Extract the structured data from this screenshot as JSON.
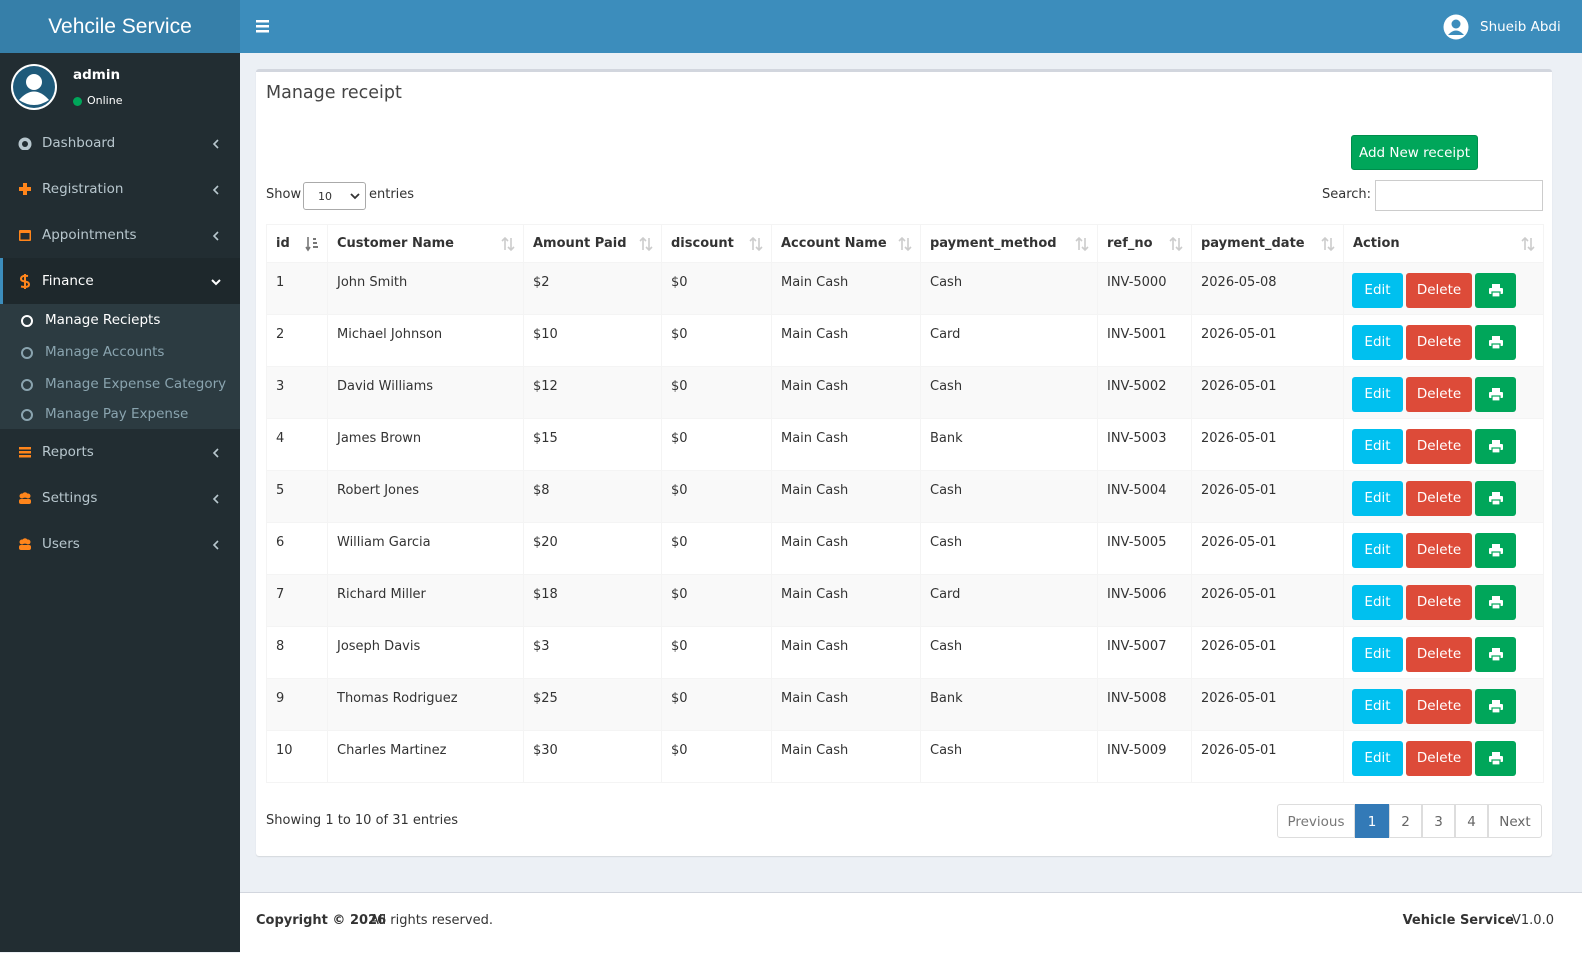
{
  "brand": "Vehcile Service",
  "user_name": "Shueib Abdi",
  "sidebar": {
    "user": "admin",
    "status": "Online",
    "menu": [
      {
        "label": "Dashboard"
      },
      {
        "label": "Registration"
      },
      {
        "label": "Appointments"
      },
      {
        "label": "Finance",
        "children": [
          "Manage Reciepts",
          "Manage Accounts",
          "Manage Expense Category",
          "Manage Pay Expense"
        ]
      },
      {
        "label": "Reports"
      },
      {
        "label": "Settings"
      },
      {
        "label": "Users"
      }
    ]
  },
  "box": {
    "title": "Manage receipt",
    "add_button": "Add New receipt",
    "show": "Show",
    "page_size": "10",
    "entries": "entries",
    "search": "Search:"
  },
  "table": {
    "columns": [
      "id",
      "Customer Name",
      "Amount Paid",
      "discount",
      "Account Name",
      "payment_method",
      "ref_no",
      "payment_date",
      "Action"
    ],
    "rows": [
      [
        "1",
        "John Smith",
        "$2",
        "$0",
        "Main Cash",
        "Cash",
        "INV-5000",
        "2026-05-08"
      ],
      [
        "2",
        "Michael Johnson",
        "$10",
        "$0",
        "Main Cash",
        "Card",
        "INV-5001",
        "2026-05-01"
      ],
      [
        "3",
        "David Williams",
        "$12",
        "$0",
        "Main Cash",
        "Cash",
        "INV-5002",
        "2026-05-01"
      ],
      [
        "4",
        "James Brown",
        "$15",
        "$0",
        "Main Cash",
        "Bank",
        "INV-5003",
        "2026-05-01"
      ],
      [
        "5",
        "Robert Jones",
        "$8",
        "$0",
        "Main Cash",
        "Cash",
        "INV-5004",
        "2026-05-01"
      ],
      [
        "6",
        "William Garcia",
        "$20",
        "$0",
        "Main Cash",
        "Cash",
        "INV-5005",
        "2026-05-01"
      ],
      [
        "7",
        "Richard Miller",
        "$18",
        "$0",
        "Main Cash",
        "Card",
        "INV-5006",
        "2026-05-01"
      ],
      [
        "8",
        "Joseph Davis",
        "$3",
        "$0",
        "Main Cash",
        "Cash",
        "INV-5007",
        "2026-05-01"
      ],
      [
        "9",
        "Thomas Rodriguez",
        "$25",
        "$0",
        "Main Cash",
        "Bank",
        "INV-5008",
        "2026-05-01"
      ],
      [
        "10",
        "Charles Martinez",
        "$30",
        "$0",
        "Main Cash",
        "Cash",
        "INV-5009",
        "2026-05-01"
      ]
    ],
    "actions": [
      "Edit",
      "Delete"
    ]
  },
  "info": "Showing 1 to 10 of 31 entries",
  "pagination": [
    "Previous",
    "1",
    "2",
    "3",
    "4",
    "Next"
  ],
  "footer": {
    "copyright": "Copyright © 2026",
    "rights": "All rights reserved.",
    "app": "Vehicle Service",
    "version": "V1.0.0"
  }
}
